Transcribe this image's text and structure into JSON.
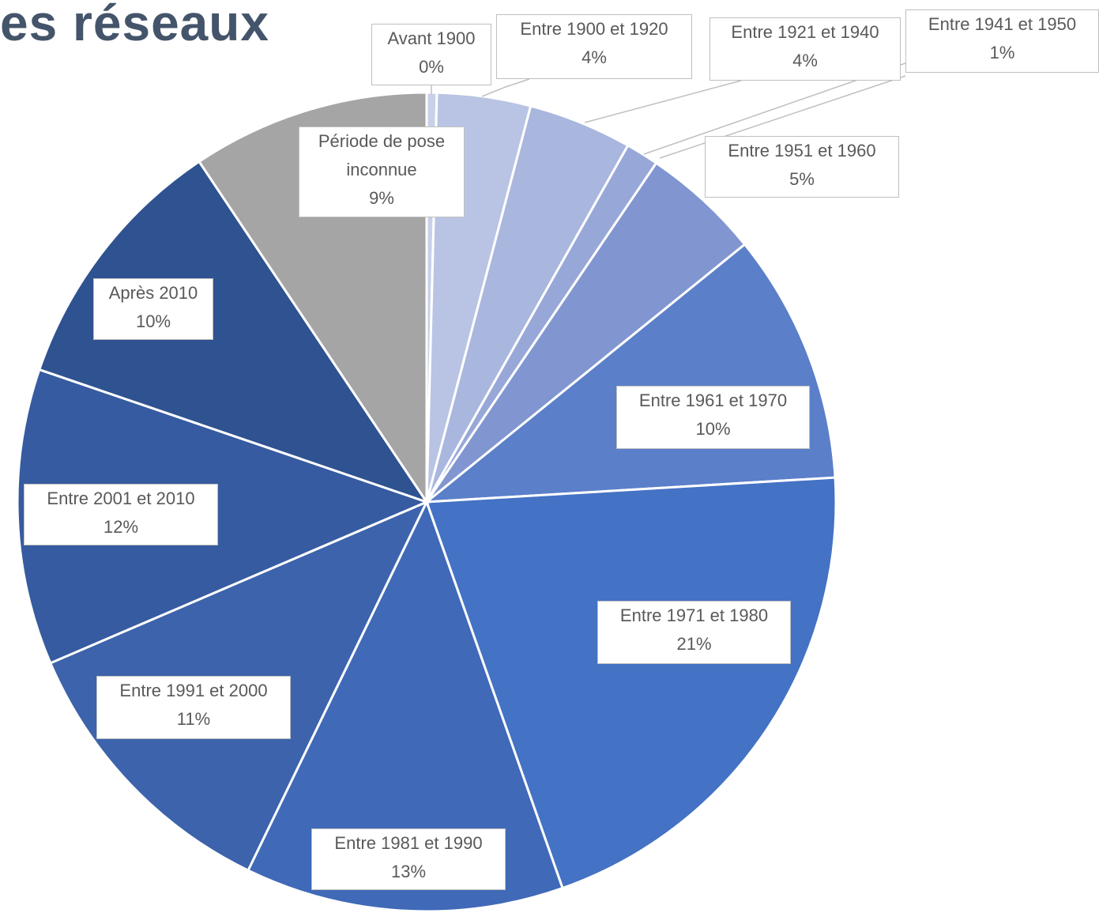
{
  "chart_data": {
    "type": "pie",
    "title": "es réseaux",
    "categories": [
      "Avant 1900",
      "Entre 1900 et 1920",
      "Entre 1921 et 1940",
      "Entre 1941 et 1950",
      "Entre 1951 et 1960",
      "Entre 1961 et 1970",
      "Entre 1971 et 1980",
      "Entre 1981 et 1990",
      "Entre 1991 et 2000",
      "Entre 2001 et 2010",
      "Après 2010",
      "Période de pose inconnue"
    ],
    "values": [
      0.4,
      3.7,
      4.1,
      1.3,
      4.7,
      9.9,
      20.6,
      12.6,
      11.4,
      11.7,
      10.4,
      9.4
    ],
    "value_labels": [
      "0%",
      "4%",
      "4%",
      "1%",
      "5%",
      "10%",
      "21%",
      "13%",
      "11%",
      "12%",
      "10%",
      "9%"
    ],
    "colors": [
      "#c8d0ea",
      "#b9c4e4",
      "#a9b6de",
      "#97a7d8",
      "#8196d0",
      "#5b7fc9",
      "#4472c4",
      "#4069b8",
      "#3c63ab",
      "#365ba0",
      "#2f5290",
      "#a5a5a5"
    ]
  }
}
